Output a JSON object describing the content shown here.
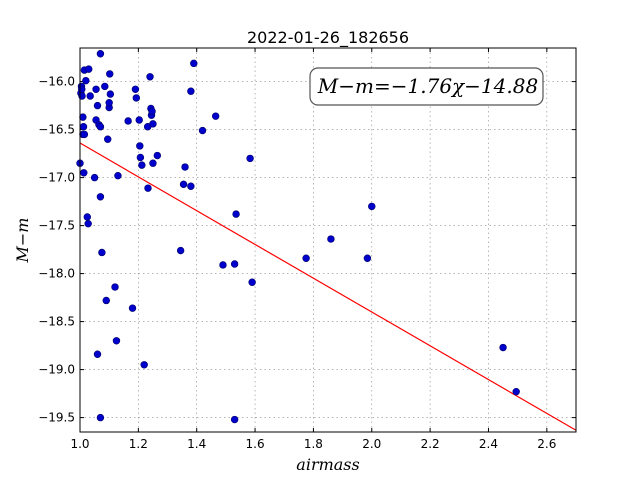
{
  "chart_data": {
    "type": "scatter",
    "title": "2022-01-26_182656",
    "xlabel": "airmass",
    "ylabel": "M−m",
    "xlim": [
      1.0,
      2.7
    ],
    "ylim": [
      -19.65,
      -15.65
    ],
    "y_inverted": true,
    "grid": true,
    "xticks": [
      1.0,
      1.2,
      1.4,
      1.6,
      1.8,
      2.0,
      2.2,
      2.4,
      2.6
    ],
    "xtick_labels": [
      "1.0",
      "1.2",
      "1.4",
      "1.6",
      "1.8",
      "2.0",
      "2.2",
      "2.4",
      "2.6"
    ],
    "yticks": [
      -16.0,
      -16.5,
      -17.0,
      -17.5,
      -18.0,
      -18.5,
      -19.0,
      -19.5
    ],
    "ytick_labels": [
      "−16.0",
      "−16.5",
      "−17.0",
      "−17.5",
      "−18.0",
      "−18.5",
      "−19.0",
      "−19.5"
    ],
    "annotation": "M−m=−1.76χ−14.88",
    "annotation_position": "top-right",
    "fit": {
      "slope": -1.76,
      "intercept": -14.88,
      "color": "#ff0000"
    },
    "point_color": "#0000cc",
    "points": [
      [
        1.0,
        -16.85
      ],
      [
        1.003,
        -16.12
      ],
      [
        1.005,
        -16.05
      ],
      [
        1.006,
        -16.08
      ],
      [
        1.007,
        -16.15
      ],
      [
        1.01,
        -16.55
      ],
      [
        1.01,
        -16.37
      ],
      [
        1.012,
        -16.47
      ],
      [
        1.013,
        -16.95
      ],
      [
        1.015,
        -16.55
      ],
      [
        1.015,
        -15.88
      ],
      [
        1.02,
        -15.99
      ],
      [
        1.025,
        -17.41
      ],
      [
        1.028,
        -17.48
      ],
      [
        1.03,
        -15.87
      ],
      [
        1.035,
        -16.15
      ],
      [
        1.05,
        -17.0
      ],
      [
        1.055,
        -16.08
      ],
      [
        1.055,
        -16.4
      ],
      [
        1.06,
        -16.25
      ],
      [
        1.06,
        -18.84
      ],
      [
        1.065,
        -16.45
      ],
      [
        1.07,
        -16.47
      ],
      [
        1.07,
        -15.71
      ],
      [
        1.07,
        -17.2
      ],
      [
        1.07,
        -19.5
      ],
      [
        1.075,
        -17.78
      ],
      [
        1.085,
        -16.05
      ],
      [
        1.09,
        -18.28
      ],
      [
        1.095,
        -16.6
      ],
      [
        1.1,
        -16.27
      ],
      [
        1.1,
        -16.22
      ],
      [
        1.102,
        -15.92
      ],
      [
        1.104,
        -16.13
      ],
      [
        1.12,
        -18.14
      ],
      [
        1.125,
        -18.7
      ],
      [
        1.13,
        -16.98
      ],
      [
        1.165,
        -16.41
      ],
      [
        1.18,
        -18.36
      ],
      [
        1.19,
        -16.08
      ],
      [
        1.193,
        -16.17
      ],
      [
        1.203,
        -16.4
      ],
      [
        1.205,
        -16.67
      ],
      [
        1.207,
        -16.79
      ],
      [
        1.212,
        -16.87
      ],
      [
        1.22,
        -18.95
      ],
      [
        1.232,
        -16.47
      ],
      [
        1.233,
        -17.11
      ],
      [
        1.24,
        -15.95
      ],
      [
        1.243,
        -16.28
      ],
      [
        1.245,
        -16.35
      ],
      [
        1.247,
        -16.31
      ],
      [
        1.25,
        -16.44
      ],
      [
        1.25,
        -16.85
      ],
      [
        1.265,
        -16.77
      ],
      [
        1.345,
        -17.76
      ],
      [
        1.355,
        -17.07
      ],
      [
        1.36,
        -16.89
      ],
      [
        1.38,
        -16.1
      ],
      [
        1.38,
        -17.09
      ],
      [
        1.39,
        -15.81
      ],
      [
        1.42,
        -16.51
      ],
      [
        1.465,
        -16.36
      ],
      [
        1.49,
        -17.91
      ],
      [
        1.53,
        -17.9
      ],
      [
        1.535,
        -17.38
      ],
      [
        1.53,
        -19.52
      ],
      [
        1.583,
        -16.8
      ],
      [
        1.59,
        -18.09
      ],
      [
        1.775,
        -17.84
      ],
      [
        1.86,
        -17.64
      ],
      [
        1.985,
        -17.84
      ],
      [
        2.0,
        -17.3
      ],
      [
        2.45,
        -18.77
      ],
      [
        2.495,
        -19.23
      ]
    ]
  }
}
